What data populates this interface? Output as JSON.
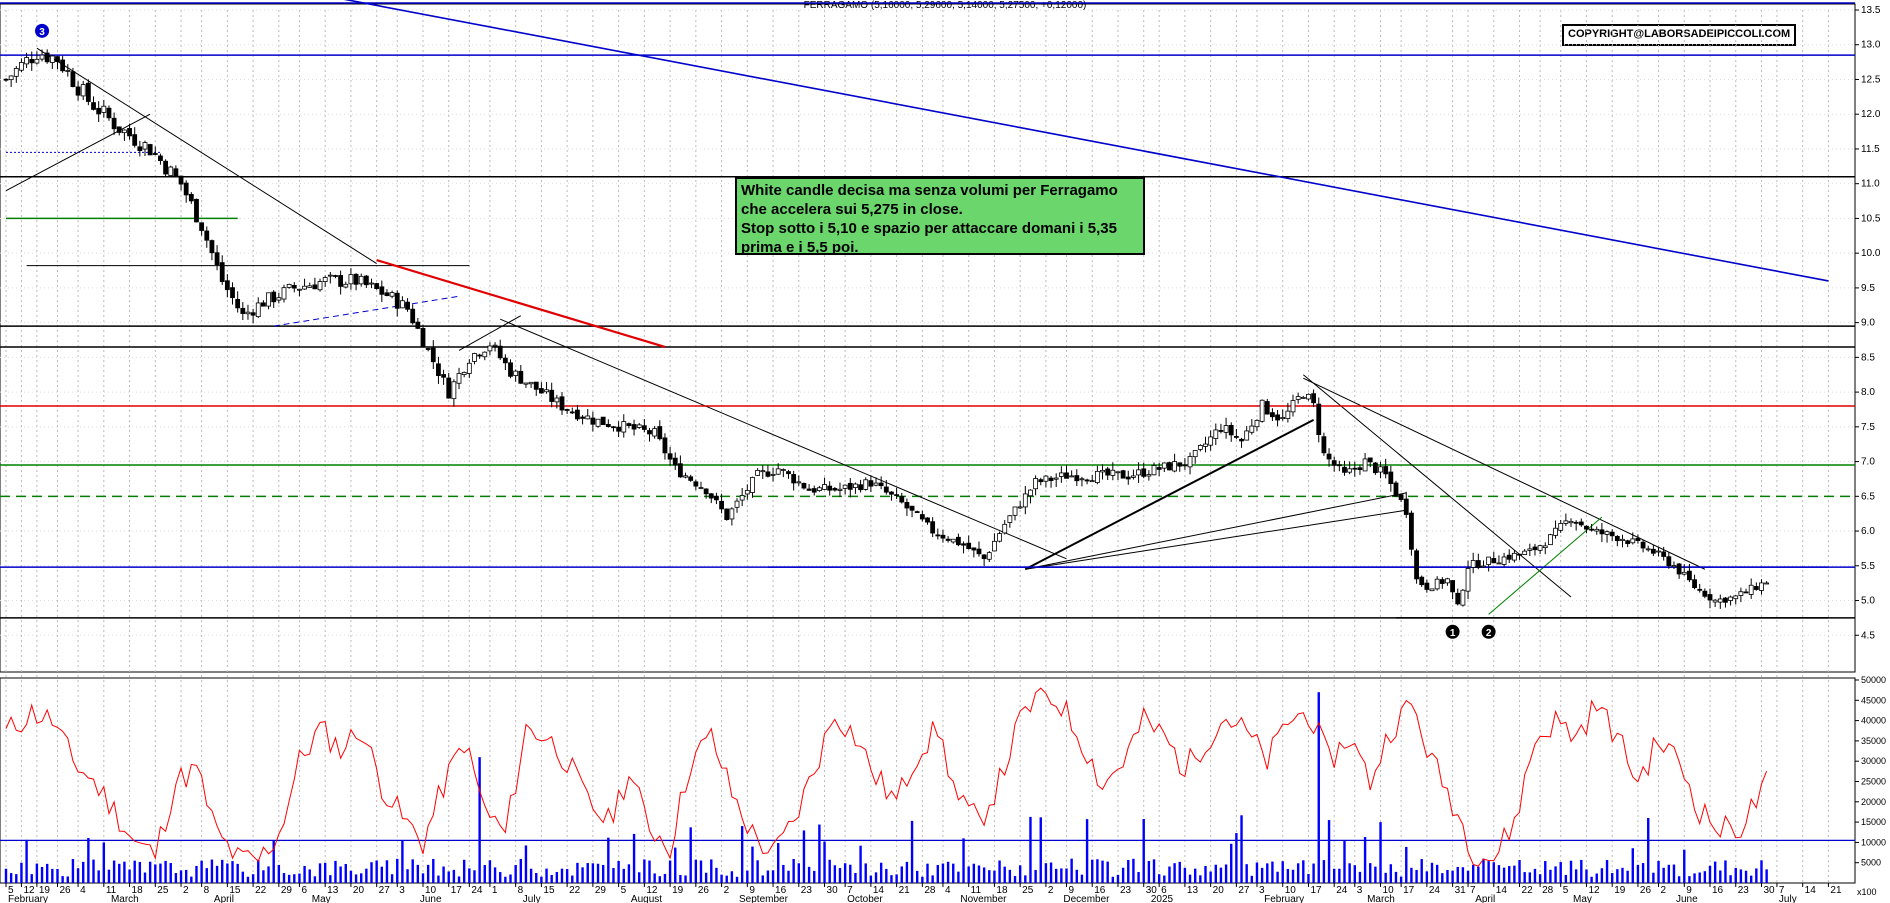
{
  "header": {
    "title": "FERRAGAMO (5,16000, 5,29600, 5,14000, 5,27500, +0,12000)",
    "copyright": "COPYRIGHT@LABORSADEIPICCOLI.COM"
  },
  "note": {
    "lines": [
      "White candle decisa ma senza volumi per Ferragamo",
      "che accelera sui 5,275 in close.",
      "Stop sotto i 5,10 e spazio per attaccare domani i 5,35",
      "prima e i 5,5 poi."
    ]
  },
  "markers": {
    "m1": "1",
    "m2": "2",
    "m3": "3"
  },
  "colors": {
    "price": "#000000",
    "volume": "#0000ff",
    "oscillator": "#ff0000",
    "support": "#0000cc",
    "green": "#008000",
    "red": "#e00000"
  },
  "chart_data": [
    {
      "type": "candlestick",
      "name": "price",
      "ylim": [
        4.0,
        13.5
      ],
      "yticks": [
        4.5,
        5.0,
        5.5,
        6.0,
        6.5,
        7.0,
        7.5,
        8.0,
        8.5,
        9.0,
        9.5,
        10.0,
        10.5,
        11.0,
        11.5,
        12.0,
        12.5,
        13.0,
        13.5
      ],
      "ytick_labels": [
        "4.5",
        "5.0",
        "5.5",
        "6.0",
        "6.5",
        "7.0",
        "7.5",
        "8.0",
        "8.5",
        "9.0",
        "9.5",
        "10.0",
        "10.5",
        "11.0",
        "11.5",
        "12.0",
        "12.5",
        "13.0",
        "13.5"
      ],
      "grid": true,
      "trend": [
        [
          0,
          12.5
        ],
        [
          6,
          12.9
        ],
        [
          10,
          12.8
        ],
        [
          16,
          12.2
        ],
        [
          22,
          11.8
        ],
        [
          28,
          11.5
        ],
        [
          34,
          11.0
        ],
        [
          38,
          10.4
        ],
        [
          42,
          9.6
        ],
        [
          46,
          9.1
        ],
        [
          50,
          9.3
        ],
        [
          56,
          9.5
        ],
        [
          62,
          9.6
        ],
        [
          68,
          9.6
        ],
        [
          74,
          9.4
        ],
        [
          78,
          9.2
        ],
        [
          82,
          8.6
        ],
        [
          86,
          8.0
        ],
        [
          90,
          8.5
        ],
        [
          94,
          8.7
        ],
        [
          98,
          8.3
        ],
        [
          104,
          8.0
        ],
        [
          108,
          7.8
        ],
        [
          114,
          7.6
        ],
        [
          120,
          7.5
        ],
        [
          126,
          7.4
        ],
        [
          130,
          6.9
        ],
        [
          136,
          6.6
        ],
        [
          140,
          6.2
        ],
        [
          146,
          6.8
        ],
        [
          150,
          6.9
        ],
        [
          156,
          6.6
        ],
        [
          162,
          6.6
        ],
        [
          168,
          6.7
        ],
        [
          174,
          6.4
        ],
        [
          180,
          6.0
        ],
        [
          186,
          5.8
        ],
        [
          190,
          5.6
        ],
        [
          194,
          6.1
        ],
        [
          200,
          6.7
        ],
        [
          206,
          6.8
        ],
        [
          212,
          6.8
        ],
        [
          218,
          6.8
        ],
        [
          224,
          6.9
        ],
        [
          230,
          7.0
        ],
        [
          236,
          7.5
        ],
        [
          240,
          7.3
        ],
        [
          244,
          7.8
        ],
        [
          248,
          7.6
        ],
        [
          252,
          8.0
        ],
        [
          254,
          7.8
        ],
        [
          256,
          7.1
        ],
        [
          260,
          6.8
        ],
        [
          264,
          7.0
        ],
        [
          268,
          6.8
        ],
        [
          272,
          6.3
        ],
        [
          274,
          5.3
        ],
        [
          276,
          5.2
        ],
        [
          280,
          5.3
        ],
        [
          282,
          4.9
        ],
        [
          284,
          5.5
        ],
        [
          290,
          5.6
        ],
        [
          296,
          5.7
        ],
        [
          300,
          5.9
        ],
        [
          304,
          6.2
        ],
        [
          308,
          6.0
        ],
        [
          314,
          5.9
        ],
        [
          320,
          5.7
        ],
        [
          324,
          5.5
        ],
        [
          328,
          5.2
        ],
        [
          332,
          5.0
        ],
        [
          336,
          5.05
        ],
        [
          340,
          5.2
        ],
        [
          342,
          5.275
        ]
      ],
      "x_dates": [
        {
          "i": 0,
          "label": "5"
        },
        {
          "i": 3,
          "label": "12"
        },
        {
          "i": 6,
          "label": "19"
        },
        {
          "i": 10,
          "label": "26"
        },
        {
          "i": 14,
          "label": "4"
        },
        {
          "i": 19,
          "label": "11"
        },
        {
          "i": 24,
          "label": "18"
        },
        {
          "i": 29,
          "label": "25"
        },
        {
          "i": 34,
          "label": "2"
        },
        {
          "i": 38,
          "label": "8"
        },
        {
          "i": 43,
          "label": "15"
        },
        {
          "i": 48,
          "label": "22"
        },
        {
          "i": 53,
          "label": "29"
        },
        {
          "i": 57,
          "label": "6"
        },
        {
          "i": 62,
          "label": "13"
        },
        {
          "i": 67,
          "label": "20"
        },
        {
          "i": 72,
          "label": "27"
        },
        {
          "i": 76,
          "label": "3"
        },
        {
          "i": 81,
          "label": "10"
        },
        {
          "i": 86,
          "label": "17"
        },
        {
          "i": 90,
          "label": "24"
        },
        {
          "i": 94,
          "label": "1"
        },
        {
          "i": 99,
          "label": "8"
        },
        {
          "i": 104,
          "label": "15"
        },
        {
          "i": 109,
          "label": "22"
        },
        {
          "i": 114,
          "label": "29"
        },
        {
          "i": 119,
          "label": "5"
        },
        {
          "i": 124,
          "label": "12"
        },
        {
          "i": 129,
          "label": "19"
        },
        {
          "i": 134,
          "label": "26"
        },
        {
          "i": 139,
          "label": "2"
        },
        {
          "i": 144,
          "label": "9"
        },
        {
          "i": 149,
          "label": "16"
        },
        {
          "i": 154,
          "label": "23"
        },
        {
          "i": 159,
          "label": "30"
        },
        {
          "i": 163,
          "label": "7"
        },
        {
          "i": 168,
          "label": "14"
        },
        {
          "i": 173,
          "label": "21"
        },
        {
          "i": 178,
          "label": "28"
        },
        {
          "i": 182,
          "label": "4"
        },
        {
          "i": 187,
          "label": "11"
        },
        {
          "i": 192,
          "label": "18"
        },
        {
          "i": 197,
          "label": "25"
        },
        {
          "i": 202,
          "label": "2"
        },
        {
          "i": 206,
          "label": "9"
        },
        {
          "i": 211,
          "label": "16"
        },
        {
          "i": 216,
          "label": "23"
        },
        {
          "i": 221,
          "label": "30"
        },
        {
          "i": 224,
          "label": "6"
        },
        {
          "i": 229,
          "label": "13"
        },
        {
          "i": 234,
          "label": "20"
        },
        {
          "i": 239,
          "label": "27"
        },
        {
          "i": 243,
          "label": "3"
        },
        {
          "i": 248,
          "label": "10"
        },
        {
          "i": 253,
          "label": "17"
        },
        {
          "i": 258,
          "label": "24"
        },
        {
          "i": 262,
          "label": "3"
        },
        {
          "i": 267,
          "label": "10"
        },
        {
          "i": 271,
          "label": "17"
        },
        {
          "i": 276,
          "label": "24"
        },
        {
          "i": 281,
          "label": "31"
        },
        {
          "i": 284,
          "label": "7"
        },
        {
          "i": 289,
          "label": "14"
        },
        {
          "i": 294,
          "label": "22"
        },
        {
          "i": 298,
          "label": "28"
        },
        {
          "i": 302,
          "label": "5"
        },
        {
          "i": 307,
          "label": "12"
        },
        {
          "i": 312,
          "label": "19"
        },
        {
          "i": 317,
          "label": "26"
        },
        {
          "i": 321,
          "label": "2"
        },
        {
          "i": 326,
          "label": "9"
        },
        {
          "i": 331,
          "label": "16"
        },
        {
          "i": 336,
          "label": "23"
        },
        {
          "i": 341,
          "label": "30"
        },
        {
          "i": 344,
          "label": "7"
        },
        {
          "i": 349,
          "label": "14"
        },
        {
          "i": 354,
          "label": "21"
        }
      ],
      "x_months": [
        {
          "i": 0,
          "label": "February"
        },
        {
          "i": 20,
          "label": "March"
        },
        {
          "i": 40,
          "label": "April"
        },
        {
          "i": 59,
          "label": "May"
        },
        {
          "i": 80,
          "label": "June"
        },
        {
          "i": 100,
          "label": "July"
        },
        {
          "i": 121,
          "label": "August"
        },
        {
          "i": 142,
          "label": "September"
        },
        {
          "i": 163,
          "label": "October"
        },
        {
          "i": 185,
          "label": "November"
        },
        {
          "i": 205,
          "label": "December"
        },
        {
          "i": 222,
          "label": "2025"
        },
        {
          "i": 244,
          "label": "February"
        },
        {
          "i": 264,
          "label": "March"
        },
        {
          "i": 285,
          "label": "April"
        },
        {
          "i": 304,
          "label": "May"
        },
        {
          "i": 324,
          "label": "June"
        },
        {
          "i": 344,
          "label": "July"
        }
      ],
      "n_bars": 358,
      "horizontal_levels": [
        {
          "y": 13.6,
          "color": "#0000cc"
        },
        {
          "y": 12.85,
          "color": "#0000cc"
        },
        {
          "y": 11.1,
          "color": "#000000"
        },
        {
          "y": 8.95,
          "color": "#000000"
        },
        {
          "y": 8.65,
          "color": "#000000"
        },
        {
          "y": 7.8,
          "color": "#e00000"
        },
        {
          "y": 6.95,
          "color": "#008000"
        },
        {
          "y": 6.5,
          "color": "#008000",
          "dash": true
        },
        {
          "y": 5.48,
          "color": "#0000cc"
        },
        {
          "y": 4.75,
          "color": "#000000"
        }
      ]
    },
    {
      "type": "bar",
      "name": "volume",
      "ylim": [
        0,
        50000
      ],
      "yticks": [
        5000,
        10000,
        15000,
        20000,
        25000,
        30000,
        35000,
        40000,
        45000,
        50000
      ],
      "ytick_labels": [
        "5000",
        "10000",
        "15000",
        "20000",
        "25000",
        "30000",
        "35000",
        "40000",
        "45000",
        "50000"
      ],
      "unit_label": "x100",
      "reference_level": 10500
    },
    {
      "type": "line",
      "name": "oscillator",
      "points": [
        [
          0,
          37000
        ],
        [
          5,
          42000
        ],
        [
          9,
          40000
        ],
        [
          13,
          30000
        ],
        [
          17,
          25000
        ],
        [
          21,
          18000
        ],
        [
          25,
          10000
        ],
        [
          29,
          7000
        ],
        [
          33,
          25000
        ],
        [
          37,
          28000
        ],
        [
          41,
          12000
        ],
        [
          45,
          6000
        ],
        [
          49,
          5500
        ],
        [
          53,
          12000
        ],
        [
          57,
          30000
        ],
        [
          61,
          38000
        ],
        [
          65,
          33000
        ],
        [
          69,
          38000
        ],
        [
          73,
          24000
        ],
        [
          77,
          16000
        ],
        [
          81,
          10000
        ],
        [
          85,
          24000
        ],
        [
          89,
          35000
        ],
        [
          93,
          18000
        ],
        [
          97,
          12000
        ],
        [
          101,
          38000
        ],
        [
          105,
          36000
        ],
        [
          109,
          30000
        ],
        [
          113,
          20000
        ],
        [
          117,
          15000
        ],
        [
          121,
          27000
        ],
        [
          125,
          14000
        ],
        [
          129,
          9000
        ],
        [
          133,
          30000
        ],
        [
          137,
          36000
        ],
        [
          141,
          22000
        ],
        [
          145,
          12000
        ],
        [
          149,
          7000
        ],
        [
          153,
          15000
        ],
        [
          157,
          28000
        ],
        [
          161,
          42000
        ],
        [
          165,
          36000
        ],
        [
          169,
          26000
        ],
        [
          173,
          20000
        ],
        [
          177,
          32000
        ],
        [
          181,
          38000
        ],
        [
          185,
          20000
        ],
        [
          189,
          15000
        ],
        [
          193,
          25000
        ],
        [
          197,
          40000
        ],
        [
          201,
          47000
        ],
        [
          205,
          44000
        ],
        [
          209,
          35000
        ],
        [
          213,
          24000
        ],
        [
          217,
          30000
        ],
        [
          221,
          40000
        ],
        [
          225,
          36000
        ],
        [
          229,
          28000
        ],
        [
          233,
          35000
        ],
        [
          237,
          41000
        ],
        [
          241,
          37000
        ],
        [
          245,
          30000
        ],
        [
          249,
          40000
        ],
        [
          253,
          42000
        ],
        [
          257,
          30000
        ],
        [
          261,
          36000
        ],
        [
          265,
          25000
        ],
        [
          269,
          38000
        ],
        [
          273,
          44000
        ],
        [
          277,
          30000
        ],
        [
          281,
          20000
        ],
        [
          285,
          8000
        ],
        [
          289,
          6000
        ],
        [
          293,
          15000
        ],
        [
          297,
          35000
        ],
        [
          301,
          40000
        ],
        [
          305,
          36000
        ],
        [
          309,
          44000
        ],
        [
          313,
          36000
        ],
        [
          317,
          25000
        ],
        [
          321,
          35000
        ],
        [
          325,
          30000
        ],
        [
          329,
          18000
        ],
        [
          333,
          13000
        ],
        [
          337,
          14000
        ],
        [
          341,
          22000
        ],
        [
          345,
          32000
        ],
        [
          349,
          39000
        ],
        [
          353,
          38000
        ]
      ],
      "color": "#ff0000"
    }
  ]
}
